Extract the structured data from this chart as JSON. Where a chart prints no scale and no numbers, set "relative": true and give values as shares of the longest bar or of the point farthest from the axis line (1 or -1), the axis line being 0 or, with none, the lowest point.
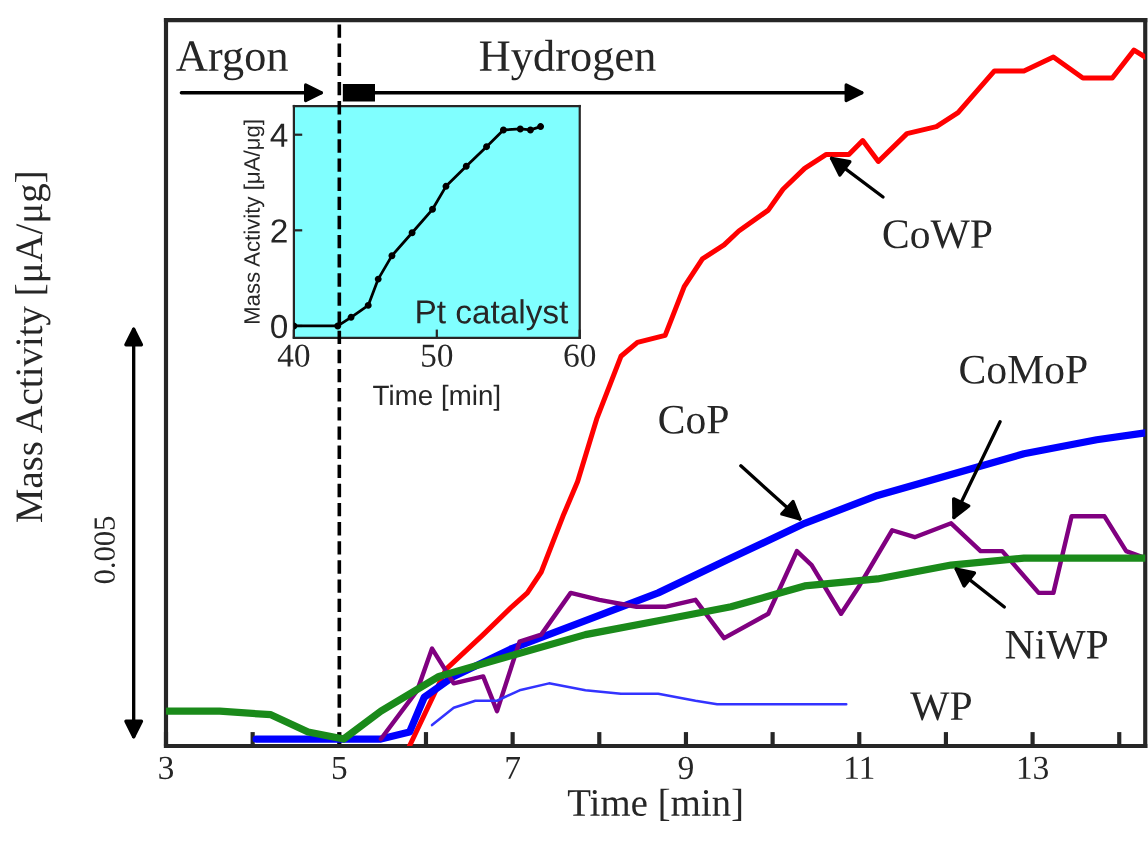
{
  "chart_data": [
    {
      "type": "line",
      "relative": true,
      "xlabel": "Time [min]",
      "ylabel": "Mass Activity [μA/μg]",
      "xlim": [
        3,
        14.3
      ],
      "xticks": [
        3,
        {
          "value": 4,
          "label": null
        },
        5,
        {
          "value": 6,
          "label": null
        },
        7,
        {
          "value": 8,
          "label": null
        },
        9,
        {
          "value": 10,
          "label": null
        },
        11,
        {
          "value": 12,
          "label": null
        },
        13,
        {
          "value": 14,
          "label": null
        }
      ],
      "ref_lines": [
        {
          "axis": "x",
          "value": 5,
          "label": null,
          "color": "#000000",
          "line_style": "dashed"
        }
      ],
      "series": [
        {
          "color": "#ff0000",
          "x": [
            5.81,
            6.23,
            6.66,
            6.99,
            7.17,
            7.33,
            7.58,
            7.75,
            7.97,
            8.25,
            8.44,
            8.76,
            8.98,
            9.19,
            9.44,
            9.61,
            9.95,
            10.12,
            10.37,
            10.62,
            10.88,
            11.04,
            11.22,
            11.55,
            11.89,
            12.14,
            12.56,
            12.9,
            13.24,
            13.58,
            13.92,
            14.17,
            14.3
          ],
          "values": [
            0.0,
            0.11,
            0.16,
            0.2,
            0.22,
            0.25,
            0.33,
            0.38,
            0.47,
            0.56,
            0.58,
            0.59,
            0.66,
            0.7,
            0.72,
            0.74,
            0.77,
            0.8,
            0.83,
            0.85,
            0.85,
            0.87,
            0.84,
            0.88,
            0.89,
            0.91,
            0.97,
            0.97,
            0.99,
            0.96,
            0.96,
            1.0,
            0.99
          ]
        },
        {
          "color": "#0000ff",
          "x": [
            4.04,
            4.89,
            5.48,
            5.81,
            5.98,
            6.32,
            6.99,
            7.84,
            8.68,
            9.52,
            10.37,
            11.21,
            12.06,
            12.9,
            13.74,
            14.3
          ],
          "values": [
            0.01,
            0.01,
            0.01,
            0.02,
            0.07,
            0.1,
            0.14,
            0.18,
            0.22,
            0.27,
            0.32,
            0.36,
            0.39,
            0.42,
            0.44,
            0.45
          ]
        },
        {
          "color": "#800080",
          "x": [
            5.48,
            5.9,
            6.07,
            6.32,
            6.66,
            6.82,
            7.08,
            7.33,
            7.67,
            8.0,
            8.43,
            8.76,
            9.11,
            9.44,
            9.95,
            10.28,
            10.45,
            10.79,
            11.0,
            11.38,
            11.64,
            12.06,
            12.4,
            12.65,
            13.07,
            13.24,
            13.45,
            13.83,
            14.08,
            14.3
          ],
          "values": [
            0.01,
            0.08,
            0.14,
            0.09,
            0.1,
            0.05,
            0.15,
            0.16,
            0.22,
            0.21,
            0.2,
            0.2,
            0.21,
            0.155,
            0.19,
            0.28,
            0.26,
            0.19,
            0.23,
            0.31,
            0.3,
            0.32,
            0.28,
            0.28,
            0.22,
            0.22,
            0.33,
            0.33,
            0.28,
            0.27
          ]
        },
        {
          "color": "#1a8a1a",
          "x": [
            3.02,
            3.62,
            4.21,
            4.64,
            5.05,
            5.48,
            6.15,
            6.99,
            7.84,
            8.68,
            9.52,
            10.37,
            11.21,
            12.06,
            12.9,
            13.74,
            14.3
          ],
          "values": [
            0.05,
            0.05,
            0.045,
            0.02,
            0.01,
            0.05,
            0.1,
            0.13,
            0.16,
            0.18,
            0.2,
            0.23,
            0.24,
            0.26,
            0.27,
            0.27,
            0.27
          ]
        },
        {
          "color": "#3333ff",
          "x": [
            6.07,
            6.32,
            6.57,
            6.82,
            7.08,
            7.42,
            7.84,
            8.25,
            8.68,
            9.11,
            9.36,
            10.85
          ],
          "values": [
            0.03,
            0.055,
            0.065,
            0.065,
            0.08,
            0.09,
            0.08,
            0.075,
            0.075,
            0.065,
            0.06,
            0.06
          ]
        }
      ],
      "annotations": [
        "Argon",
        "Hydrogen",
        "0.005",
        {
          "text": "CoWP",
          "x": 10.62,
          "y": 0.85
        },
        {
          "text": "CoP",
          "x": 10.37,
          "y": 0.32
        },
        {
          "text": "CoMoP",
          "x": 12.06,
          "y": 0.32
        },
        {
          "text": "NiWP",
          "x": 12.06,
          "y": 0.26
        },
        {
          "text": "WP",
          "x": 10.85,
          "y": 0.06
        }
      ]
    },
    {
      "type": "line",
      "marker": "circle",
      "xlabel": "Time [min]",
      "ylabel": "Mass Activity [μA/μg]",
      "xlim": [
        40,
        60
      ],
      "ylim": [
        -0.25,
        4.6
      ],
      "xticks": [
        40,
        50,
        60
      ],
      "yticks": [
        0,
        2,
        4
      ],
      "series": [
        {
          "color": "#000000",
          "x": [
            40,
            43.07,
            44.0,
            45.2,
            45.9,
            46.86,
            48.27,
            49.7,
            50.64,
            52.06,
            53.48,
            54.66,
            55.84,
            56.55,
            57.26
          ],
          "values": [
            0,
            0,
            0.18,
            0.43,
            0.98,
            1.47,
            1.95,
            2.44,
            2.92,
            3.34,
            3.75,
            4.1,
            4.12,
            4.1,
            4.17
          ]
        }
      ],
      "annotations": [
        "Pt catalyst"
      ]
    }
  ]
}
